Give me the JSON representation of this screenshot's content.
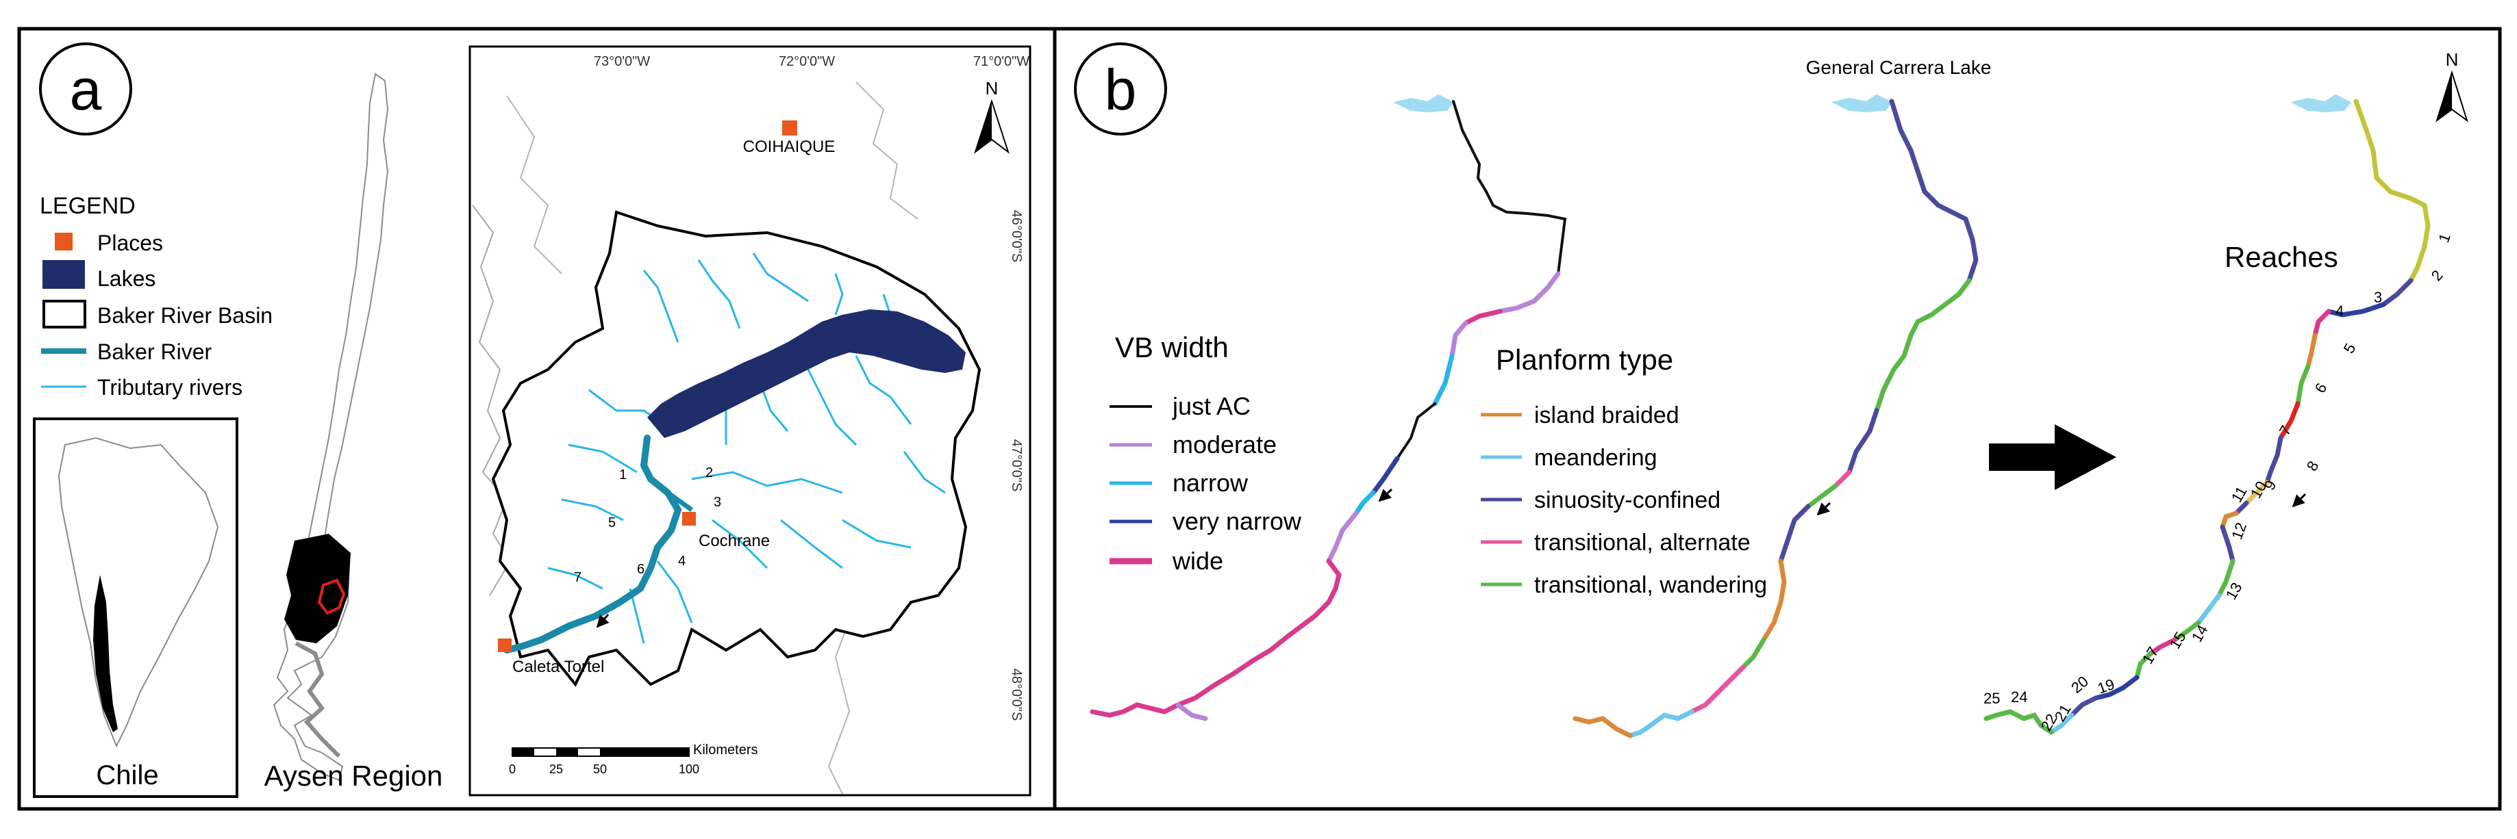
{
  "panel_a": {
    "label": "a",
    "legend": {
      "title": "LEGEND",
      "items": [
        {
          "label": "Places",
          "color": "#e8581f",
          "symbol": "square"
        },
        {
          "label": "Lakes",
          "color": "#1f2d6b",
          "symbol": "filled-rect"
        },
        {
          "label": "Baker River Basin",
          "color": "#000000",
          "symbol": "outline-rect"
        },
        {
          "label": "Baker River",
          "color": "#1a8aa8",
          "symbol": "thick-line"
        },
        {
          "label": "Tributary rivers",
          "color": "#29b6e8",
          "symbol": "thin-line"
        }
      ]
    },
    "inset_chile_label": "Chile",
    "aysen_label": "Aysen Region",
    "map": {
      "lon_labels": [
        "73°0'0\"W",
        "72°0'0\"W",
        "71°0'0\"W"
      ],
      "lat_labels": [
        "46°0'0\"S",
        "47°0'0\"S",
        "48°0'0\"S"
      ],
      "north": "N",
      "places": [
        "COIHAIQUE",
        "Cochrane",
        "Caleta Tortel"
      ],
      "reach_numbers": [
        "1",
        "2",
        "3",
        "4",
        "5",
        "6",
        "7"
      ],
      "scalebar": {
        "ticks": [
          "0",
          "25",
          "50",
          "100"
        ],
        "unit": "Kilometers"
      }
    }
  },
  "panel_b": {
    "label": "b",
    "lake_label": "General Carrera Lake",
    "north": "N",
    "vb_width": {
      "title": "VB width",
      "items": [
        {
          "label": "just AC",
          "color": "#111111"
        },
        {
          "label": "moderate",
          "color": "#b884d6"
        },
        {
          "label": "narrow",
          "color": "#29b6e8"
        },
        {
          "label": "very narrow",
          "color": "#2c3f9e"
        },
        {
          "label": "wide",
          "color": "#d83a8c"
        }
      ]
    },
    "planform": {
      "title": "Planform type",
      "items": [
        {
          "label": "island braided",
          "color": "#d9893a"
        },
        {
          "label": "meandering",
          "color": "#6ec6ea"
        },
        {
          "label": "sinuosity-confined",
          "color": "#4b4a9c"
        },
        {
          "label": "transitional, alternate",
          "color": "#e6559a"
        },
        {
          "label": "transitional, wandering",
          "color": "#5ab848"
        }
      ]
    },
    "reaches_title": "Reaches",
    "reach_numbers": [
      "1",
      "2",
      "3",
      "4",
      "5",
      "6",
      "7",
      "8",
      "9",
      "10",
      "11",
      "12",
      "13",
      "14",
      "15",
      "17",
      "19",
      "20",
      "21",
      "22",
      "24",
      "25"
    ]
  },
  "colors": {
    "lake_light": "#9fdcf2",
    "lake_dark": "#1f2d6b",
    "baker": "#1a8aa8",
    "tributary": "#29b6e8",
    "place": "#e8581f",
    "reach_olive": "#c2c43a"
  }
}
